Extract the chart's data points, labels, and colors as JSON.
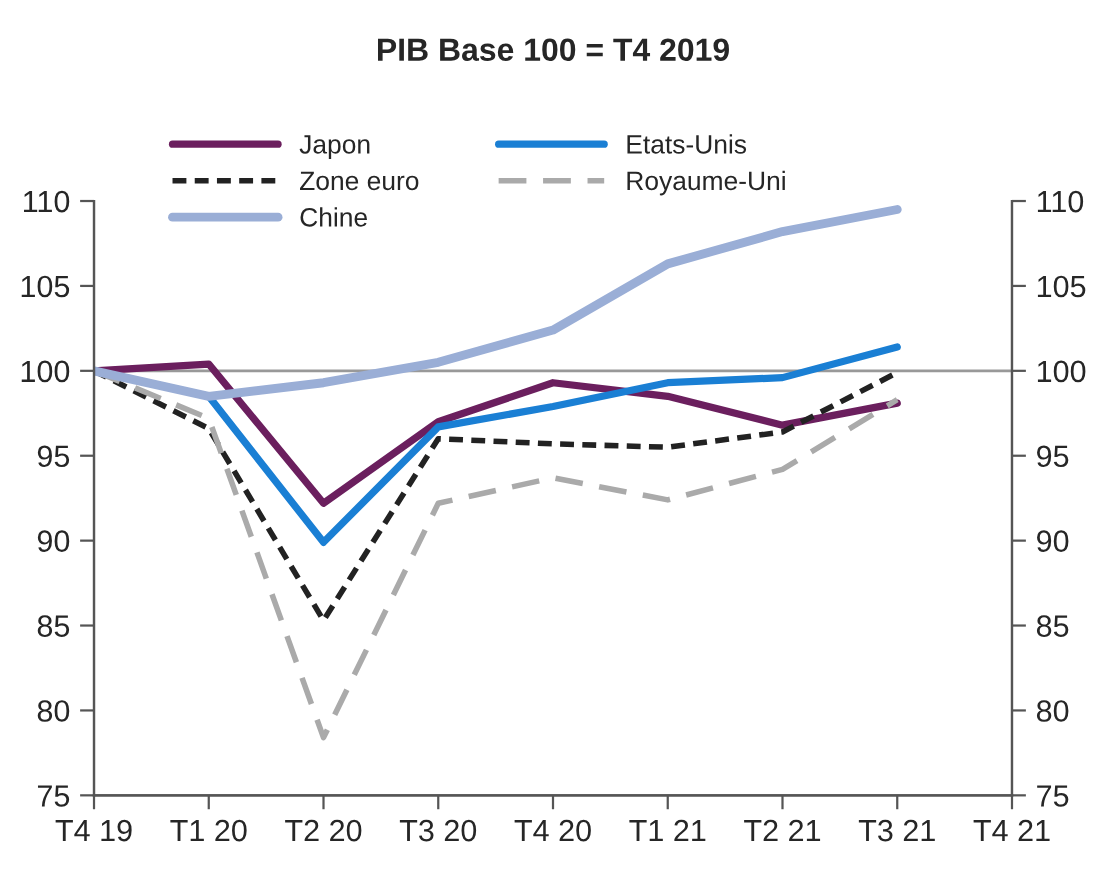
{
  "chart_data": {
    "type": "line",
    "title": "PIB Base 100 = T4 2019",
    "categories": [
      "T4 19",
      "T1 20",
      "T2 20",
      "T3 20",
      "T4 20",
      "T1 21",
      "T2 21",
      "T3 21",
      "T4 21"
    ],
    "series": [
      {
        "name": "Japon",
        "color": "#6b1f5e",
        "line_style": "solid",
        "values": [
          100,
          100.4,
          92.2,
          97,
          99.3,
          98.5,
          96.8,
          98.1,
          null
        ]
      },
      {
        "name": "Etats-Unis",
        "color": "#1a7fd4",
        "line_style": "solid",
        "values": [
          100,
          98.5,
          89.9,
          96.7,
          97.9,
          99.3,
          99.6,
          101.4,
          null
        ]
      },
      {
        "name": "Zone euro",
        "color": "#222222",
        "line_style": "dotted",
        "values": [
          100,
          96.6,
          85.3,
          96,
          95.7,
          95.5,
          96.4,
          99.9,
          null
        ]
      },
      {
        "name": "Royaume-Uni",
        "color": "#aaaaaa",
        "line_style": "dashed",
        "values": [
          100,
          97.2,
          78.4,
          92.2,
          93.7,
          92.4,
          94.2,
          98.3,
          null
        ]
      },
      {
        "name": "Chine",
        "color": "#9aaed6",
        "line_style": "solid",
        "values": [
          100,
          98.5,
          99.3,
          100.5,
          102.4,
          106.3,
          108.2,
          109.5,
          null
        ]
      }
    ],
    "ylim": [
      75,
      110
    ],
    "yticks": [
      75,
      80,
      85,
      90,
      95,
      100,
      105,
      110
    ],
    "y2lim": [
      75,
      110
    ],
    "y2ticks": [
      75,
      80,
      85,
      90,
      95,
      100,
      105,
      110
    ],
    "ref_lines": [
      {
        "axis": "y",
        "value": 100,
        "color": "#999999",
        "line_style": "solid"
      }
    ],
    "grid": false,
    "legend": "top",
    "marker": "none"
  }
}
